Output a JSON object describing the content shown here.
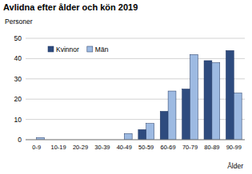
{
  "chart_data": {
    "type": "bar",
    "title": "Avlidna efter ålder och kön 2019",
    "y_label": "Personer",
    "x_label": "Ålder",
    "categories": [
      "0-9",
      "10-19",
      "20-29",
      "30-39",
      "40-49",
      "50-59",
      "60-69",
      "70-79",
      "80-89",
      "90-99"
    ],
    "series": [
      {
        "name": "Kvinnor",
        "color": "#2e4b7e",
        "values": [
          0,
          0,
          0,
          0,
          0,
          5,
          14,
          25,
          39,
          44
        ]
      },
      {
        "name": "Män",
        "color": "#9dbae2",
        "values": [
          1,
          0,
          0,
          0,
          3,
          8,
          24,
          42,
          38,
          23
        ]
      }
    ],
    "ylim": [
      0,
      50
    ],
    "yticks": [
      0,
      10,
      20,
      30,
      40,
      50
    ],
    "grid": true,
    "legend": "top-left"
  }
}
